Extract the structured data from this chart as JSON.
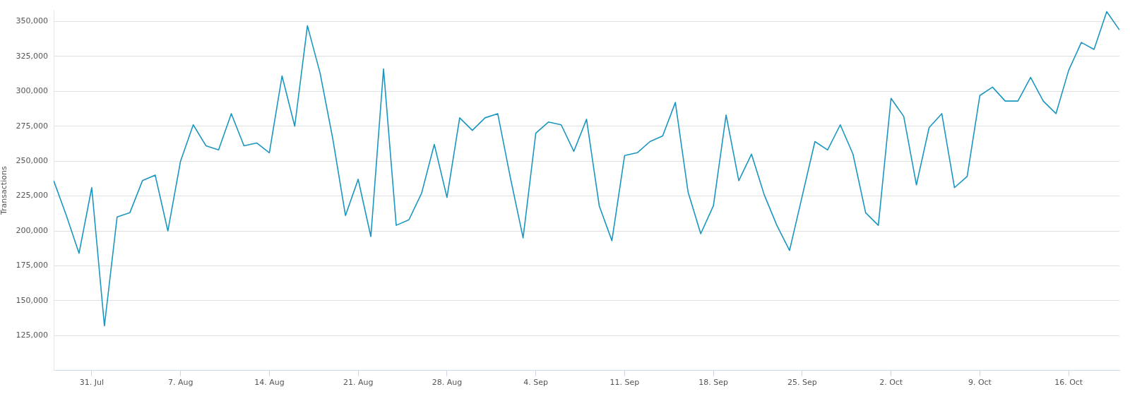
{
  "chart_data": {
    "type": "line",
    "ylabel": "Transactions",
    "x": [
      "--07-28",
      "--07-29",
      "--07-30",
      "--07-31",
      "--08-01",
      "--08-02",
      "--08-03",
      "--08-04",
      "--08-05",
      "--08-06",
      "--08-07",
      "--08-08",
      "--08-09",
      "--08-10",
      "--08-11",
      "--08-12",
      "--08-13",
      "--08-14",
      "--08-15",
      "--08-16",
      "--08-17",
      "--08-18",
      "--08-19",
      "--08-20",
      "--08-21",
      "--08-22",
      "--08-23",
      "--08-24",
      "--08-25",
      "--08-26",
      "--08-27",
      "--08-28",
      "--08-29",
      "--08-30",
      "--08-31",
      "--09-01",
      "--09-02",
      "--09-03",
      "--09-04",
      "--09-05",
      "--09-06",
      "--09-07",
      "--09-08",
      "--09-09",
      "--09-10",
      "--09-11",
      "--09-12",
      "--09-13",
      "--09-14",
      "--09-15",
      "--09-16",
      "--09-17",
      "--09-18",
      "--09-19",
      "--09-20",
      "--09-21",
      "--09-22",
      "--09-23",
      "--09-24",
      "--09-25",
      "--09-26",
      "--09-27",
      "--09-28",
      "--09-29",
      "--09-30",
      "--10-01",
      "--10-02",
      "--10-03",
      "--10-04",
      "--10-05",
      "--10-06",
      "--10-07",
      "--10-08",
      "--10-09",
      "--10-10",
      "--10-11",
      "--10-12",
      "--10-13",
      "--10-14",
      "--10-15",
      "--10-16",
      "--10-17",
      "--10-18",
      "--10-19",
      "--10-20"
    ],
    "series": [
      {
        "color": "#1a96c0",
        "values": [
          236000,
          211000,
          184000,
          231000,
          132000,
          210000,
          213000,
          236000,
          240000,
          200000,
          250000,
          276000,
          261000,
          258000,
          284000,
          261000,
          263000,
          256000,
          311000,
          275000,
          347000,
          313000,
          266000,
          211000,
          237000,
          196000,
          316000,
          204000,
          208000,
          227000,
          262000,
          224000,
          281000,
          272000,
          281000,
          284000,
          238000,
          195000,
          270000,
          278000,
          276000,
          257000,
          280000,
          218000,
          193000,
          254000,
          256000,
          264000,
          268000,
          292000,
          228000,
          198000,
          218000,
          283000,
          236000,
          255000,
          226000,
          204000,
          186000,
          225000,
          264000,
          258000,
          276000,
          255000,
          213000,
          204000,
          295000,
          282000,
          233000,
          274000,
          284000,
          231000,
          239000,
          297000,
          303000,
          293000,
          293000,
          310000,
          293000,
          284000,
          315000,
          335000,
          330000,
          357000,
          344000
        ]
      }
    ],
    "xlim": [
      "--07-28",
      "--10-20"
    ],
    "xticks": [
      {
        "value": "--07-31",
        "label": "31. Jul"
      },
      {
        "value": "--08-07",
        "label": "7. Aug"
      },
      {
        "value": "--08-14",
        "label": "14. Aug"
      },
      {
        "value": "--08-21",
        "label": "21. Aug"
      },
      {
        "value": "--08-28",
        "label": "28. Aug"
      },
      {
        "value": "--09-04",
        "label": "4. Sep"
      },
      {
        "value": "--09-11",
        "label": "11. Sep"
      },
      {
        "value": "--09-18",
        "label": "18. Sep"
      },
      {
        "value": "--09-25",
        "label": "25. Sep"
      },
      {
        "value": "--10-02",
        "label": "2. Oct"
      },
      {
        "value": "--10-09",
        "label": "9. Oct"
      },
      {
        "value": "--10-16",
        "label": "16. Oct"
      }
    ],
    "ylim": [
      100000,
      358000
    ],
    "yticks": [
      {
        "value": 125000,
        "label": "125,000"
      },
      {
        "value": 150000,
        "label": "150,000"
      },
      {
        "value": 175000,
        "label": "175,000"
      },
      {
        "value": 200000,
        "label": "200,000"
      },
      {
        "value": 225000,
        "label": "225,000"
      },
      {
        "value": 250000,
        "label": "250,000"
      },
      {
        "value": 275000,
        "label": "275,000"
      },
      {
        "value": 300000,
        "label": "300,000"
      },
      {
        "value": 325000,
        "label": "325,000"
      },
      {
        "value": 350000,
        "label": "350,000"
      }
    ],
    "grid": "y",
    "legend": false,
    "marker": "none",
    "line_style": "solid"
  }
}
